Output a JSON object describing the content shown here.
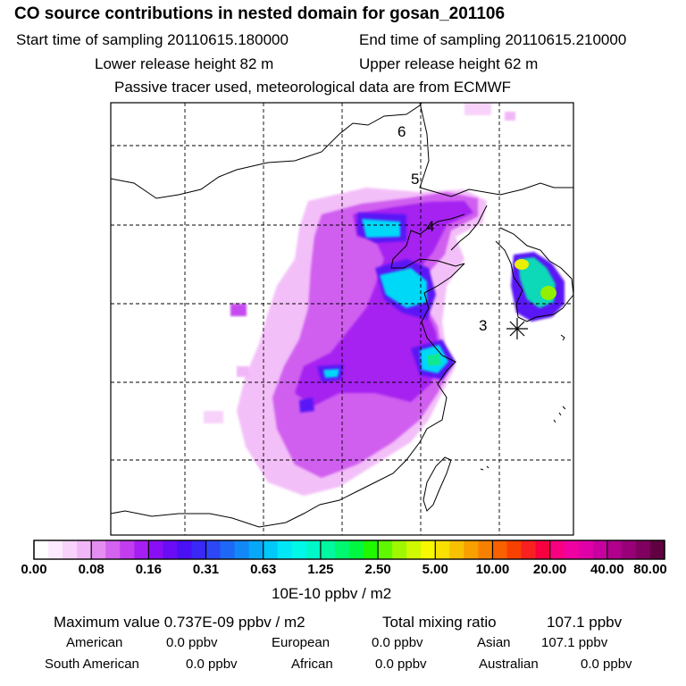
{
  "header": {
    "title": "CO  source contributions in nested domain for gosan_201106",
    "start_label": "Start time of sampling 20110615.180000",
    "end_label": "End time of sampling 20110615.210000",
    "lower_label": "Lower release height   82 m",
    "upper_label": "Upper release height   62 m",
    "note": "Passive tracer used, meteorological data are from ECMWF"
  },
  "map": {
    "trajectory_labels": [
      "6",
      "5",
      "4",
      "3"
    ]
  },
  "colorbar": {
    "tick_labels": [
      "0.00",
      "0.08",
      "0.16",
      "0.31",
      "0.63",
      "1.25",
      "2.50",
      "5.00",
      "10.00",
      "20.00",
      "40.00",
      "80.00"
    ],
    "unit": "10E-10 ppbv / m2",
    "colors": [
      "#ffffff",
      "#fdeafe",
      "#f8d2fb",
      "#f1b6f8",
      "#e48ef2",
      "#d463f0",
      "#c23cf0",
      "#a51ef2",
      "#8a0ef5",
      "#6a0cf6",
      "#4a10f6",
      "#3a28f6",
      "#2c48f6",
      "#1e68f6",
      "#1288f7",
      "#08a8f8",
      "#00c8f8",
      "#00e8f8",
      "#00f8e8",
      "#00f8c8",
      "#00f8a0",
      "#00f870",
      "#00f840",
      "#20f800",
      "#60f800",
      "#a0f800",
      "#d0f800",
      "#f8f800",
      "#f8e000",
      "#f8c000",
      "#f8a000",
      "#f88000",
      "#f86000",
      "#f84000",
      "#f82020",
      "#f80040",
      "#f80080",
      "#f000a0",
      "#e000a8",
      "#c800a0",
      "#b0008c",
      "#980078",
      "#800060",
      "#600040"
    ]
  },
  "stats": {
    "max_label": "Maximum value  0.737E-09 ppbv / m2",
    "total_label": "Total mixing ratio",
    "total_value": "107.1 ppbv",
    "american_label": "American",
    "american_value": "0.0 ppbv",
    "european_label": "European",
    "european_value": "0.0 ppbv",
    "asian_label": "Asian",
    "asian_value": "107.1 ppbv",
    "south_american_label": "South American",
    "south_american_value": "0.0 ppbv",
    "african_label": "African",
    "african_value": "0.0 ppbv",
    "australian_label": "Australian",
    "australian_value": "0.0 ppbv"
  }
}
